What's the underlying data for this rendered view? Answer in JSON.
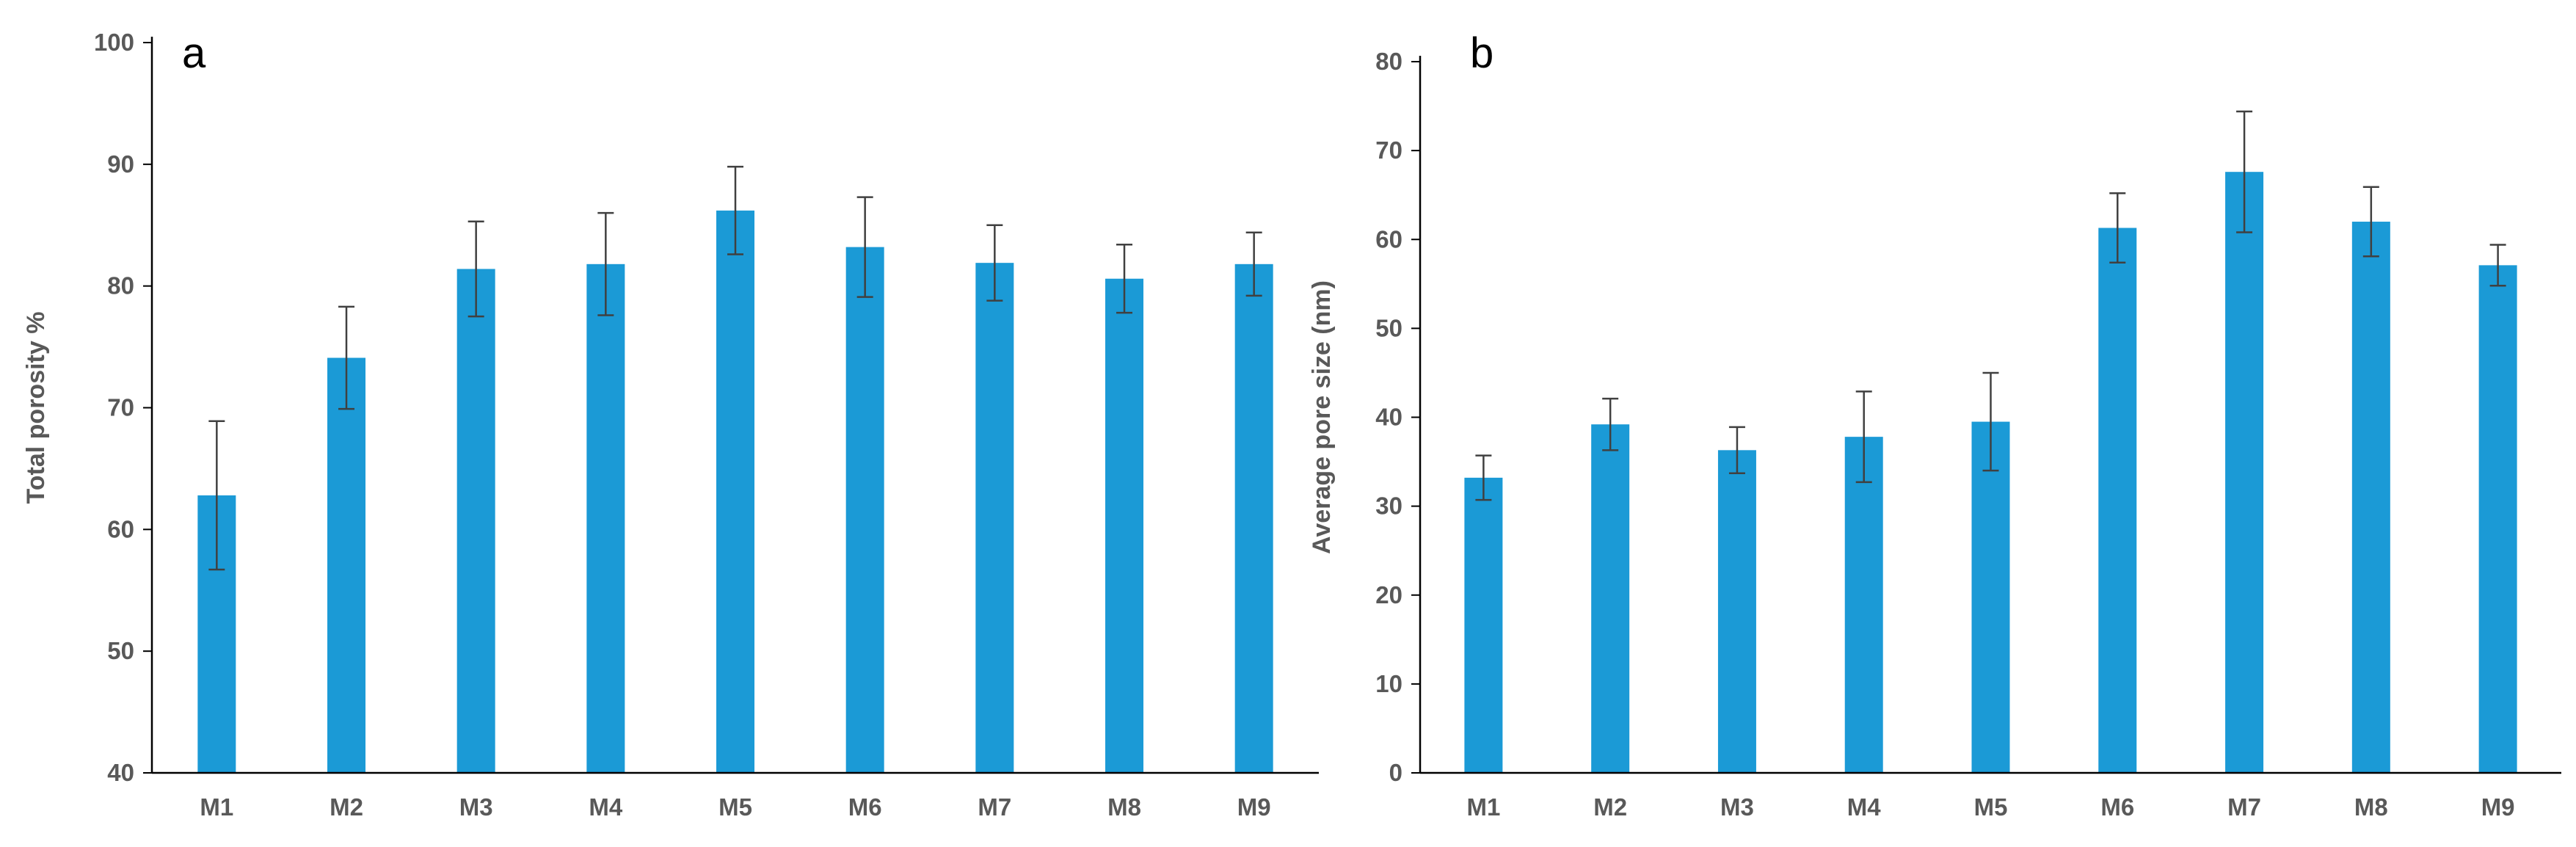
{
  "chart_data": [
    {
      "panel_label": "a",
      "type": "bar",
      "categories": [
        "M1",
        "M2",
        "M3",
        "M4",
        "M5",
        "M6",
        "M7",
        "M8",
        "M9"
      ],
      "values": [
        62.8,
        74.1,
        81.4,
        81.8,
        86.2,
        83.2,
        81.9,
        80.6,
        81.8
      ],
      "errors": [
        6.1,
        4.2,
        3.9,
        4.2,
        3.6,
        4.1,
        3.1,
        2.8,
        2.6
      ],
      "title": "",
      "xlabel": "",
      "ylabel": "Total porosity %",
      "ylim": [
        40,
        100
      ],
      "yticks": [
        40,
        50,
        60,
        70,
        80,
        90,
        100
      ],
      "grid": false,
      "bar_color": "#1B9AD6",
      "error_color": "#404040"
    },
    {
      "panel_label": "b",
      "type": "bar",
      "categories": [
        "M1",
        "M2",
        "M3",
        "M4",
        "M5",
        "M6",
        "M7",
        "M8",
        "M9"
      ],
      "values": [
        33.2,
        39.2,
        36.3,
        37.8,
        39.5,
        61.3,
        67.6,
        62.0,
        57.1
      ],
      "errors": [
        2.5,
        2.9,
        2.6,
        5.1,
        5.5,
        3.9,
        6.8,
        3.9,
        2.3
      ],
      "title": "",
      "xlabel": "",
      "ylabel": "Average pore size (nm)",
      "ylim": [
        0,
        80
      ],
      "yticks": [
        0,
        10,
        20,
        30,
        40,
        50,
        60,
        70,
        80
      ],
      "grid": false,
      "bar_color": "#1B9AD6",
      "error_color": "#404040"
    }
  ]
}
